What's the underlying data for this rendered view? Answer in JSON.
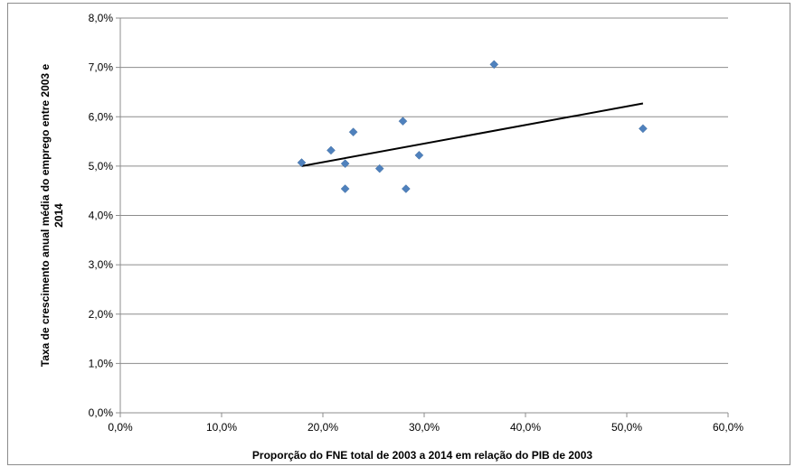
{
  "chart_data": {
    "type": "scatter",
    "xlabel": "Proporção do FNE total de 2003 a 2014 em relação do PIB de 2003",
    "ylabel_lines": [
      "Taxa de crescimento anual média do emprego entre 2003 e",
      "2014"
    ],
    "xlim": [
      0,
      60
    ],
    "ylim": [
      0,
      8
    ],
    "x_ticks": [
      "0,0%",
      "10,0%",
      "20,0%",
      "30,0%",
      "40,0%",
      "50,0%",
      "60,0%"
    ],
    "y_ticks": [
      "0,0%",
      "1,0%",
      "2,0%",
      "3,0%",
      "4,0%",
      "5,0%",
      "6,0%",
      "7,0%",
      "8,0%"
    ],
    "grid": "horizontal",
    "legend": "none",
    "marker": "diamond",
    "marker_color": "#4f81bd",
    "trendline_color": "#000000",
    "points": [
      {
        "x": 17.9,
        "y": 5.07
      },
      {
        "x": 20.8,
        "y": 5.32
      },
      {
        "x": 22.2,
        "y": 5.05
      },
      {
        "x": 22.2,
        "y": 4.54
      },
      {
        "x": 23.0,
        "y": 5.69
      },
      {
        "x": 25.6,
        "y": 4.95
      },
      {
        "x": 27.9,
        "y": 5.91
      },
      {
        "x": 28.2,
        "y": 4.54
      },
      {
        "x": 29.5,
        "y": 5.22
      },
      {
        "x": 36.9,
        "y": 7.06
      },
      {
        "x": 51.6,
        "y": 5.76
      }
    ],
    "trendline": {
      "x": [
        17.9,
        51.6
      ],
      "y": [
        5.0,
        6.27
      ]
    }
  }
}
